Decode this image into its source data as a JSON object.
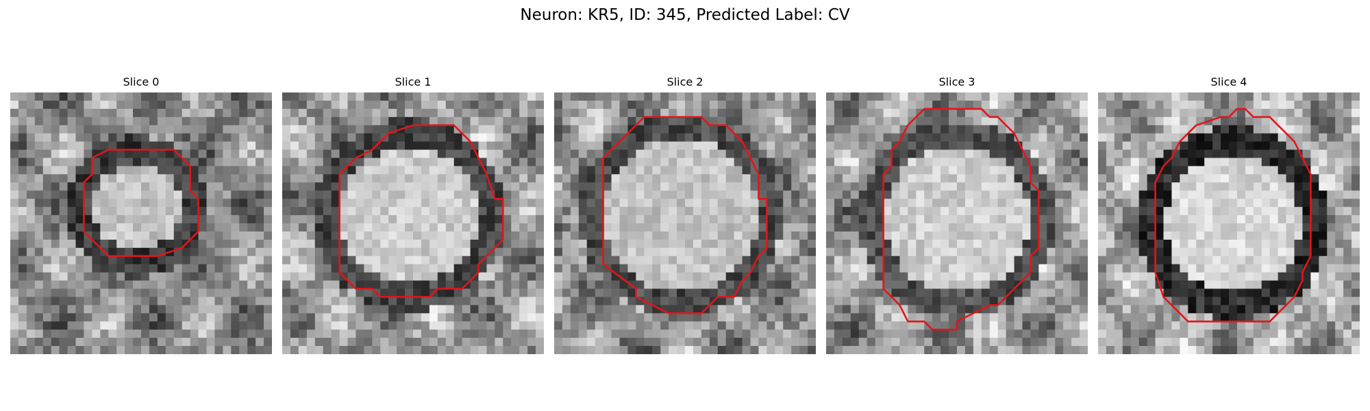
{
  "figure": {
    "title": "Neuron: KR5, ID: 345, Predicted Label: CV"
  },
  "panels": [
    {
      "title": "Slice 0",
      "seed": 11,
      "outline_color": "#e3151a",
      "grayscale": true
    },
    {
      "title": "Slice 1",
      "seed": 23,
      "outline_color": "#e3151a",
      "grayscale": true
    },
    {
      "title": "Slice 2",
      "seed": 37,
      "outline_color": "#e3151a",
      "grayscale": true
    },
    {
      "title": "Slice 3",
      "seed": 41,
      "outline_color": "#e3151a",
      "grayscale": true
    },
    {
      "title": "Slice 4",
      "seed": 59,
      "outline_color": "#e3151a",
      "grayscale": true
    }
  ]
}
